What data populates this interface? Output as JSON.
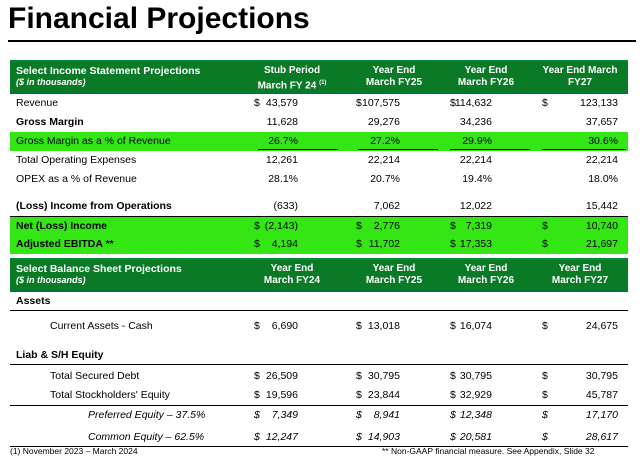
{
  "title": "Financial Projections",
  "income": {
    "header": {
      "label": "Select Income Statement Projections",
      "sub": "($ in thousands)",
      "cols": [
        {
          "l1": "Stub Period",
          "l2": "March FY 24",
          "sup": "(1)"
        },
        {
          "l1": "Year End",
          "l2": "March FY25",
          "sup": ""
        },
        {
          "l1": "Year End",
          "l2": "March FY26",
          "sup": ""
        },
        {
          "l1": "Year End March",
          "l2": "FY27",
          "sup": ""
        }
      ]
    },
    "rows": [
      {
        "label": "Revenue",
        "cur": [
          "$",
          "$",
          "$",
          "$"
        ],
        "vals": [
          "43,579",
          "107,575",
          "114,632",
          "123,133"
        ]
      },
      {
        "label": "Gross Margin",
        "cur": [
          "",
          "",
          "",
          ""
        ],
        "vals": [
          "11,628",
          "29,276",
          "34,236",
          "37,657"
        ]
      },
      {
        "label": "Gross Margin as a % of Revenue",
        "cur": [
          "",
          "",
          "",
          ""
        ],
        "vals": [
          "26.7%",
          "27.2%",
          "29.9%",
          "30.6%"
        ]
      },
      {
        "label": "Total Operating Expenses",
        "cur": [
          "",
          "",
          "",
          ""
        ],
        "vals": [
          "12,261",
          "22,214",
          "22,214",
          "22,214"
        ]
      },
      {
        "label": "OPEX as a % of Revenue",
        "cur": [
          "",
          "",
          "",
          ""
        ],
        "vals": [
          "28.1%",
          "20.7%",
          "19.4%",
          "18.0%"
        ]
      },
      {
        "label": "(Loss) Income from Operations",
        "cur": [
          "",
          "",
          "",
          ""
        ],
        "vals": [
          "(633)",
          "7,062",
          "12,022",
          "15,442"
        ]
      },
      {
        "label": "Net (Loss) Income",
        "cur": [
          "$",
          "$",
          "$",
          "$"
        ],
        "vals": [
          "(2,143)",
          "2,776",
          "7,319",
          "10,740"
        ]
      },
      {
        "label": "Adjusted EBITDA **",
        "cur": [
          "$",
          "$",
          "$",
          "$"
        ],
        "vals": [
          "4,194",
          "11,702",
          "17,353",
          "21,697"
        ]
      }
    ]
  },
  "balance": {
    "header": {
      "label": "Select Balance Sheet Projections",
      "sub": "($ in thousands)",
      "cols": [
        {
          "l1": "Year End",
          "l2": "March FY24"
        },
        {
          "l1": "Year End",
          "l2": "March FY25"
        },
        {
          "l1": "Year End",
          "l2": "March FY26"
        },
        {
          "l1": "Year End",
          "l2": "March FY27"
        }
      ]
    },
    "assets_label": "Assets",
    "cash": {
      "label": "Current Assets - Cash",
      "cur": [
        "$",
        "$",
        "$",
        "$"
      ],
      "vals": [
        "6,690",
        "13,018",
        "16,074",
        "24,675"
      ]
    },
    "liab_label": "Liab & S/H Equity",
    "secured_debt": {
      "label": "Total Secured Debt",
      "cur": [
        "$",
        "$",
        "$",
        "$"
      ],
      "vals": [
        "26,509",
        "30,795",
        "30,795",
        "30,795"
      ]
    },
    "equity": {
      "label": "Total Stockholders' Equity",
      "cur": [
        "$",
        "$",
        "$",
        "$"
      ],
      "vals": [
        "19,596",
        "23,844",
        "32,929",
        "45,787"
      ]
    },
    "preferred": {
      "label": "Preferred Equity – 37.5%",
      "cur": [
        "$",
        "$",
        "$",
        "$"
      ],
      "vals": [
        "7,349",
        "8,941",
        "12,348",
        "17,170"
      ]
    },
    "common": {
      "label": "Common Equity – 62.5%",
      "cur": [
        "$",
        "$",
        "$",
        "$"
      ],
      "vals": [
        "12,247",
        "14,903",
        "20,581",
        "28,617"
      ]
    }
  },
  "footer": {
    "left": "(1) November 2023 – March 2024",
    "right": "** Non-GAAP financial measure. See Appendix, Slide 32"
  },
  "colors": {
    "header_green": "#0b7a26",
    "highlight_green": "#33e614"
  }
}
